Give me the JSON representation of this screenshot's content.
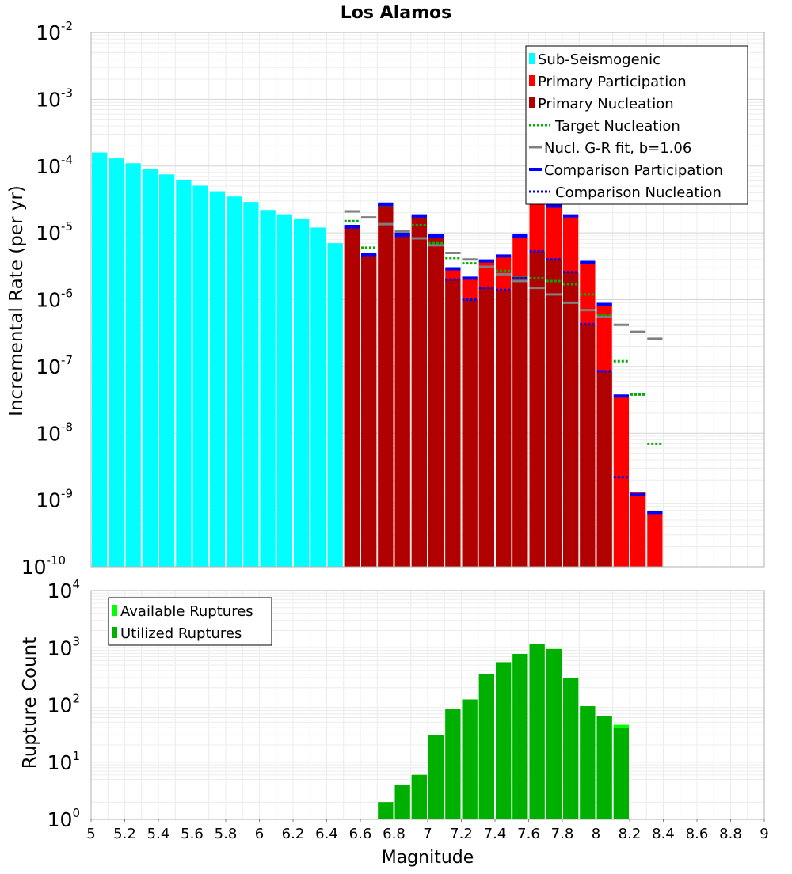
{
  "chart_data": [
    {
      "type": "bar",
      "title": "Los Alamos",
      "ylabel": "Incremental Rate (per yr)",
      "xlabel": "",
      "xlim": [
        5,
        9
      ],
      "ylim_exponents": [
        -10,
        -2
      ],
      "ytick_base": "10",
      "legend_position": "top-right",
      "bar_width": 0.1,
      "series": [
        {
          "name": "Sub-Seismogenic",
          "color": "#00ffff",
          "kind": "bar",
          "x": [
            5.05,
            5.15,
            5.25,
            5.35,
            5.45,
            5.55,
            5.65,
            5.75,
            5.85,
            5.95,
            6.05,
            6.15,
            6.25,
            6.35,
            6.45
          ],
          "values": [
            0.00016,
            0.00013,
            0.00011,
            9e-05,
            7.5e-05,
            6.2e-05,
            5.1e-05,
            4.2e-05,
            3.5e-05,
            2.9e-05,
            2.2e-05,
            1.9e-05,
            1.6e-05,
            1.2e-05,
            7e-06
          ]
        },
        {
          "name": "Primary Participation",
          "color": "#ff0000",
          "kind": "bar",
          "x": [
            6.55,
            6.65,
            6.75,
            6.85,
            6.95,
            7.05,
            7.15,
            7.25,
            7.35,
            7.45,
            7.55,
            7.65,
            7.75,
            7.85,
            7.95,
            8.05,
            8.15,
            8.25,
            8.35
          ],
          "values": [
            1.25e-05,
            4.8e-06,
            2.7e-05,
            9.5e-06,
            1.8e-05,
            9e-06,
            2.9e-06,
            2.1e-06,
            3.8e-06,
            4.5e-06,
            9e-06,
            2.8e-05,
            2.5e-05,
            1.8e-05,
            3.6e-06,
            8.5e-07,
            3.6e-08,
            1.3e-09,
            6.5e-10
          ]
        },
        {
          "name": "Primary Nucleation",
          "color": "#b00000",
          "kind": "bar",
          "x": [
            6.55,
            6.65,
            6.75,
            6.85,
            6.95,
            7.05,
            7.15,
            7.25,
            7.35,
            7.45,
            7.55,
            7.65,
            7.75,
            7.85,
            7.95,
            8.05,
            8.15
          ],
          "values": [
            1.2e-05,
            4.6e-06,
            2.6e-05,
            9e-06,
            1.7e-05,
            8.7e-06,
            2e-06,
            1e-06,
            1.5e-06,
            1.4e-06,
            2.1e-06,
            5.3e-06,
            4e-06,
            2.6e-06,
            4.3e-07,
            8.5e-08,
            1e-10
          ]
        },
        {
          "name": "Target Nucleation",
          "color": "#00b000",
          "kind": "dotted",
          "x": [
            6.55,
            6.65,
            6.75,
            6.85,
            6.95,
            7.05,
            7.15,
            7.25,
            7.35,
            7.45,
            7.55,
            7.65,
            7.75,
            7.85,
            7.95,
            8.05,
            8.15,
            8.25,
            8.35
          ],
          "values": [
            1.5e-05,
            6e-06,
            2.5e-05,
            1.05e-05,
            1.3e-05,
            7e-06,
            4.2e-06,
            3.5e-06,
            3.1e-06,
            2.7e-06,
            2.2e-06,
            2.1e-06,
            1.9e-06,
            1.7e-06,
            1.2e-06,
            5.8e-07,
            1.2e-07,
            3.8e-08,
            7e-09
          ]
        },
        {
          "name": "Nucl. G-R fit, b=1.06",
          "color": "#808080",
          "kind": "solid",
          "x": [
            6.55,
            6.65,
            6.75,
            6.85,
            6.95,
            7.05,
            7.15,
            7.25,
            7.35,
            7.45,
            7.55,
            7.65,
            7.75,
            7.85,
            7.95,
            8.05,
            8.15,
            8.25,
            8.35
          ],
          "values": [
            2.1e-05,
            1.7e-05,
            1.35e-05,
            1.05e-05,
            8.3e-06,
            6.5e-06,
            5e-06,
            4e-06,
            3.1e-06,
            2.4e-06,
            1.9e-06,
            1.5e-06,
            1.2e-06,
            9e-07,
            7e-07,
            5.5e-07,
            4.2e-07,
            3.3e-07,
            2.6e-07
          ]
        },
        {
          "name": "Comparison Participation",
          "color": "#0000ff",
          "kind": "solid",
          "x": [
            6.55,
            6.65,
            6.75,
            6.85,
            6.95,
            7.05,
            7.15,
            7.25,
            7.35,
            7.45,
            7.55,
            7.65,
            7.75,
            7.85,
            7.95,
            8.05,
            8.15,
            8.25,
            8.35
          ],
          "values": [
            1.25e-05,
            4.8e-06,
            2.7e-05,
            9.5e-06,
            1.8e-05,
            9e-06,
            2.9e-06,
            2.1e-06,
            3.8e-06,
            4.5e-06,
            9e-06,
            2.8e-05,
            2.5e-05,
            1.8e-05,
            3.6e-06,
            8.5e-07,
            3.6e-08,
            1.2e-09,
            6.5e-10
          ]
        },
        {
          "name": "Comparison Nucleation",
          "color": "#0000ff",
          "kind": "dotted",
          "x": [
            6.55,
            6.65,
            6.75,
            6.85,
            6.95,
            7.05,
            7.15,
            7.25,
            7.35,
            7.45,
            7.55,
            7.65,
            7.75,
            7.85,
            7.95,
            8.05,
            8.15
          ],
          "values": [
            1.2e-05,
            4.6e-06,
            2.6e-05,
            9e-06,
            1.7e-05,
            8.7e-06,
            2e-06,
            1e-06,
            1.5e-06,
            1.4e-06,
            2.1e-06,
            5.3e-06,
            4e-06,
            2.6e-06,
            4.3e-07,
            8.5e-08,
            2.2e-09
          ]
        }
      ],
      "legend": [
        "Sub-Seismogenic",
        "Primary Participation",
        "Primary Nucleation",
        "Target Nucleation",
        "Nucl. G-R fit, b=1.06",
        "Comparison Participation",
        "Comparison Nucleation"
      ]
    },
    {
      "type": "bar",
      "title": "",
      "ylabel": "Rupture Count",
      "xlabel": "Magnitude",
      "xlim": [
        5,
        9
      ],
      "xticks": [
        "5",
        "5.2",
        "5.4",
        "5.6",
        "5.8",
        "6",
        "6.2",
        "6.4",
        "6.6",
        "6.8",
        "7",
        "7.2",
        "7.4",
        "7.6",
        "7.8",
        "8",
        "8.2",
        "8.4",
        "8.6",
        "8.8",
        "9"
      ],
      "ylim_exponents": [
        0,
        4
      ],
      "ytick_base": "10",
      "legend_position": "top-left",
      "bar_width": 0.1,
      "series": [
        {
          "name": "Available Ruptures",
          "color": "#00ff00",
          "kind": "bar",
          "x": [
            6.75,
            6.85,
            6.95,
            7.05,
            7.15,
            7.25,
            7.35,
            7.45,
            7.55,
            7.65,
            7.75,
            7.85,
            7.95,
            8.05,
            8.15
          ],
          "values": [
            2,
            4,
            6,
            30,
            85,
            125,
            350,
            560,
            780,
            1150,
            950,
            300,
            95,
            65,
            45
          ]
        },
        {
          "name": "Utilized Ruptures",
          "color": "#00b000",
          "kind": "bar",
          "x": [
            6.75,
            6.85,
            6.95,
            7.05,
            7.15,
            7.25,
            7.35,
            7.45,
            7.55,
            7.65,
            7.75,
            7.85,
            7.95,
            8.05,
            8.15
          ],
          "values": [
            2,
            4,
            6,
            30,
            85,
            125,
            350,
            560,
            780,
            1150,
            950,
            300,
            95,
            65,
            40
          ]
        }
      ],
      "legend": [
        "Available Ruptures",
        "Utilized Ruptures"
      ]
    }
  ]
}
